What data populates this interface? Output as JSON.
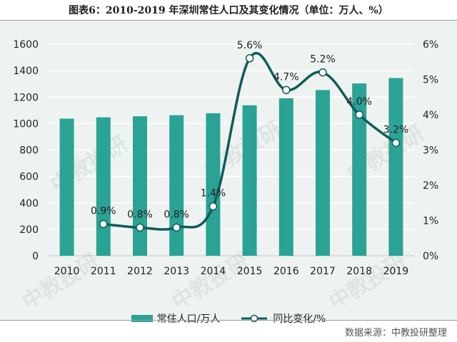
{
  "title": "图表6：2010-2019 年深圳常住人口及其变化情况（单位：万人、%）",
  "source": "数据来源：中教投研整理",
  "watermark": "中教投研",
  "colors": {
    "bar": "#2aa395",
    "line": "#0f5c58",
    "marker_fill": "#ffffff",
    "background": "#eef3f1",
    "grid": "#ffffff"
  },
  "chart_data": {
    "type": "bar",
    "categories": [
      "2010",
      "2011",
      "2012",
      "2013",
      "2014",
      "2015",
      "2016",
      "2017",
      "2018",
      "2019"
    ],
    "series": [
      {
        "name": "常住人口/万人",
        "type": "bar",
        "axis": "left",
        "values": [
          1037,
          1047,
          1055,
          1063,
          1078,
          1138,
          1191,
          1253,
          1303,
          1344
        ]
      },
      {
        "name": "同比变化/%",
        "type": "line",
        "axis": "right",
        "smooth": true,
        "values": [
          null,
          0.9,
          0.8,
          0.8,
          1.4,
          5.6,
          4.7,
          5.2,
          4.0,
          3.2
        ],
        "labels": [
          "",
          "0.9%",
          "0.8%",
          "0.8%",
          "1.4%",
          "5.6%",
          "4.7%",
          "5.2%",
          "4.0%",
          "3.2%"
        ]
      }
    ],
    "y_left": {
      "min": 0,
      "max": 1600,
      "ticks": [
        0,
        200,
        400,
        600,
        800,
        1000,
        1200,
        1400,
        1600
      ],
      "tick_labels": [
        "0",
        "200",
        "400",
        "600",
        "800",
        "1000",
        "1200",
        "1400",
        "1600"
      ]
    },
    "y_right": {
      "min": 0,
      "max": 6,
      "ticks": [
        0,
        1,
        2,
        3,
        4,
        5,
        6
      ],
      "tick_labels": [
        "0%",
        "1%",
        "2%",
        "3%",
        "4%",
        "5%",
        "6%"
      ]
    },
    "grid": true,
    "legend": "bottom"
  }
}
